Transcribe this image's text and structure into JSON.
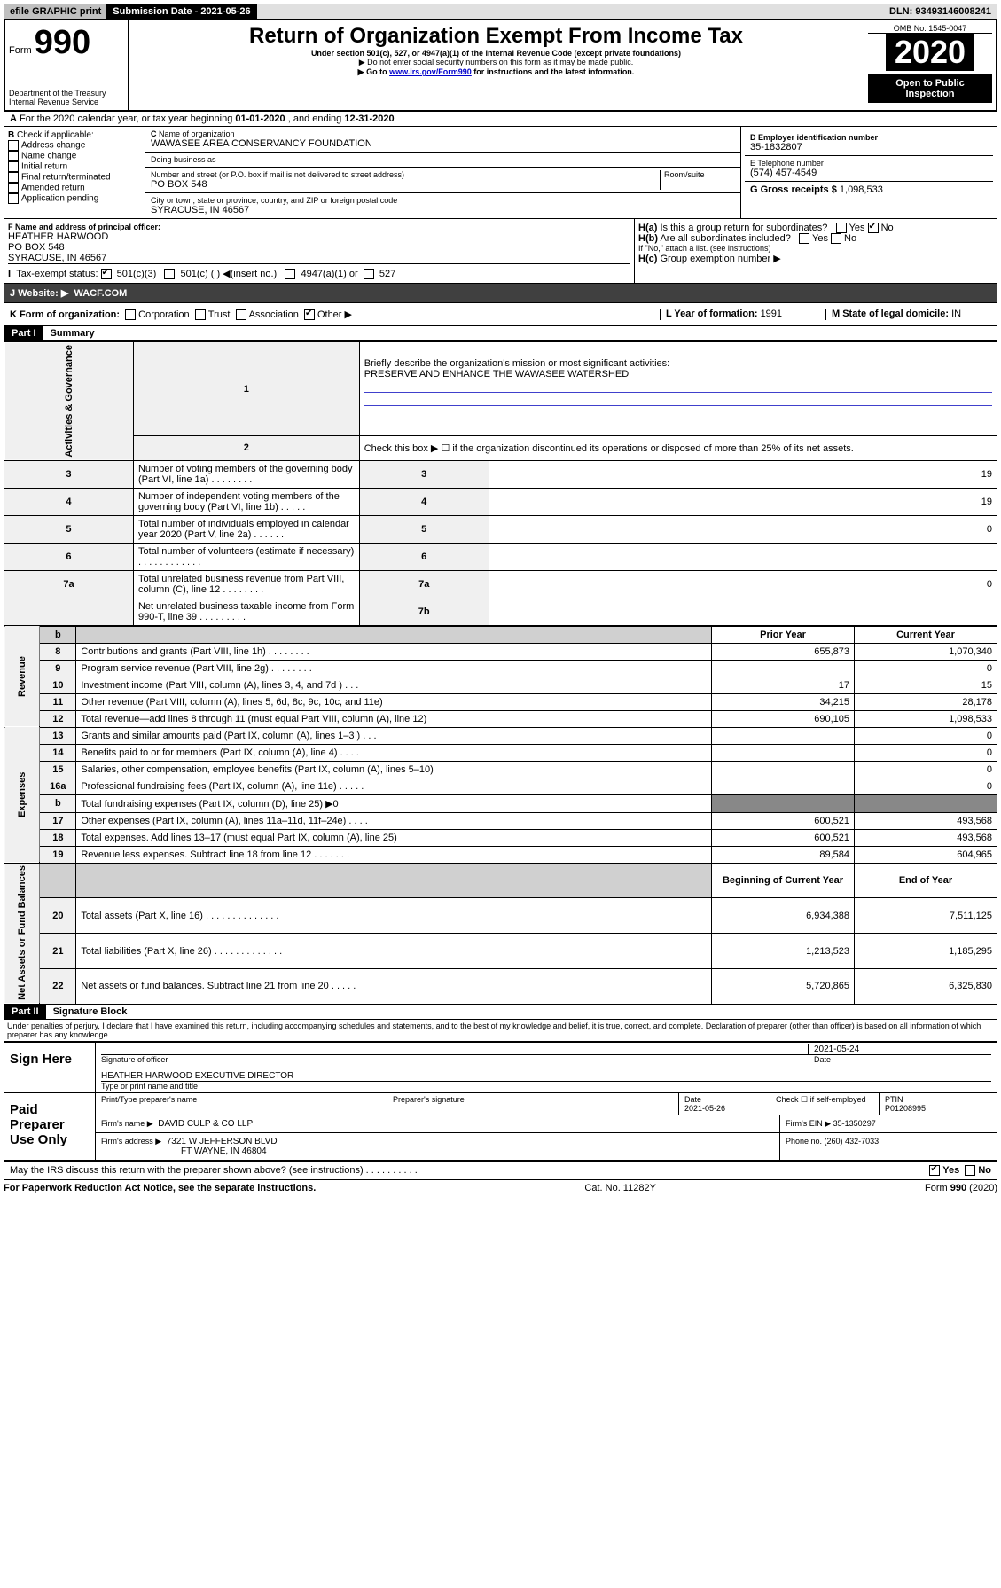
{
  "topbar": {
    "efile": "efile GRAPHIC print",
    "subdate_label": "Submission Date - 2021-05-26",
    "dln": "DLN: 93493146008241"
  },
  "header": {
    "form_prefix": "Form",
    "form_num": "990",
    "dept": "Department of the Treasury\nInternal Revenue Service",
    "title": "Return of Organization Exempt From Income Tax",
    "sub1": "Under section 501(c), 527, or 4947(a)(1) of the Internal Revenue Code (except private foundations)",
    "sub2": "▶ Do not enter social security numbers on this form as it may be made public.",
    "sub3_pre": "▶ Go to ",
    "sub3_link": "www.irs.gov/Form990",
    "sub3_post": " for instructions and the latest information.",
    "omb": "OMB No. 1545-0047",
    "year": "2020",
    "open": "Open to Public Inspection"
  },
  "periodA": {
    "text_pre": "For the 2020 calendar year, or tax year beginning ",
    "begin": "01-01-2020",
    "mid": " , and ending ",
    "end": "12-31-2020"
  },
  "checkB": {
    "label": "Check if applicable:",
    "items": [
      "Address change",
      "Name change",
      "Initial return",
      "Final return/terminated",
      "Amended return",
      "Application pending"
    ]
  },
  "orgC": {
    "name_label": "Name of organization",
    "name": "WAWASEE AREA CONSERVANCY FOUNDATION",
    "dba_label": "Doing business as",
    "addr_label": "Number and street (or P.O. box if mail is not delivered to street address)",
    "room_label": "Room/suite",
    "addr": "PO BOX 548",
    "city_label": "City or town, state or province, country, and ZIP or foreign postal code",
    "city": "SYRACUSE, IN  46567"
  },
  "colD": {
    "ein_label": "D Employer identification number",
    "ein": "35-1832807",
    "phone_label": "E Telephone number",
    "phone": "(574) 457-4549",
    "gross_label": "G Gross receipts $ ",
    "gross": "1,098,533"
  },
  "sectionF": {
    "label": "F Name and address of principal officer:",
    "name": "HEATHER HARWOOD",
    "addr1": "PO BOX 548",
    "addr2": "SYRACUSE, IN  46567"
  },
  "sectionH": {
    "a": "Is this a group return for subordinates?",
    "b": "Are all subordinates included?",
    "b_note": "If \"No,\" attach a list. (see instructions)",
    "c": "Group exemption number ▶"
  },
  "taxexempt": {
    "label": "Tax-exempt status:",
    "opt1": "501(c)(3)",
    "opt2": "501(c) (  ) ◀(insert no.)",
    "opt3": "4947(a)(1) or",
    "opt4": "527"
  },
  "website": {
    "label": "J   Website: ▶",
    "value": "WACF.COM"
  },
  "rowK": {
    "label": "K Form of organization:",
    "opts": [
      "Corporation",
      "Trust",
      "Association",
      "Other ▶"
    ],
    "L_label": "L Year of formation: ",
    "L_val": "1991",
    "M_label": "M State of legal domicile: ",
    "M_val": "IN"
  },
  "partI": {
    "header": "Part I",
    "title": "Summary",
    "q1_label": "Briefly describe the organization's mission or most significant activities:",
    "q1_text": "PRESERVE AND ENHANCE THE WAWASEE WATERSHED",
    "q2": "Check this box ▶ ☐  if the organization discontinued its operations or disposed of more than 25% of its net assets.",
    "lines_gov": [
      {
        "n": "3",
        "t": "Number of voting members of the governing body (Part VI, line 1a)  .    .    .    .    .    .    .    .",
        "box": "3",
        "v": "19"
      },
      {
        "n": "4",
        "t": "Number of independent voting members of the governing body (Part VI, line 1b)  .    .    .    .    .",
        "box": "4",
        "v": "19"
      },
      {
        "n": "5",
        "t": "Total number of individuals employed in calendar year 2020 (Part V, line 2a)  .    .    .    .    .    .",
        "box": "5",
        "v": "0"
      },
      {
        "n": "6",
        "t": "Total number of volunteers (estimate if necessary)  .    .    .    .    .    .    .    .    .    .    .    .",
        "box": "6",
        "v": ""
      },
      {
        "n": "7a",
        "t": "Total unrelated business revenue from Part VIII, column (C), line 12  .    .    .    .    .    .    .    .",
        "box": "7a",
        "v": "0"
      },
      {
        "n": "",
        "t": "Net unrelated business taxable income from Form 990-T, line 39  .    .    .    .    .    .    .    .    .",
        "box": "7b",
        "v": ""
      }
    ],
    "rev_header": {
      "b": "b",
      "py": "Prior Year",
      "cy": "Current Year"
    },
    "lines_rev": [
      {
        "n": "8",
        "t": "Contributions and grants (Part VIII, line 1h)  .    .    .    .    .    .    .    .",
        "py": "655,873",
        "cy": "1,070,340"
      },
      {
        "n": "9",
        "t": "Program service revenue (Part VIII, line 2g)  .    .    .    .    .    .    .    .",
        "py": "",
        "cy": "0"
      },
      {
        "n": "10",
        "t": "Investment income (Part VIII, column (A), lines 3, 4, and 7d )  .    .    .",
        "py": "17",
        "cy": "15"
      },
      {
        "n": "11",
        "t": "Other revenue (Part VIII, column (A), lines 5, 6d, 8c, 9c, 10c, and 11e)",
        "py": "34,215",
        "cy": "28,178"
      },
      {
        "n": "12",
        "t": "Total revenue—add lines 8 through 11 (must equal Part VIII, column (A), line 12)",
        "py": "690,105",
        "cy": "1,098,533"
      }
    ],
    "lines_exp": [
      {
        "n": "13",
        "t": "Grants and similar amounts paid (Part IX, column (A), lines 1–3 )  .    .    .",
        "py": "",
        "cy": "0"
      },
      {
        "n": "14",
        "t": "Benefits paid to or for members (Part IX, column (A), line 4)  .    .    .    .",
        "py": "",
        "cy": "0"
      },
      {
        "n": "15",
        "t": "Salaries, other compensation, employee benefits (Part IX, column (A), lines 5–10)",
        "py": "",
        "cy": "0"
      },
      {
        "n": "16a",
        "t": "Professional fundraising fees (Part IX, column (A), line 11e)  .    .    .    .    .",
        "py": "",
        "cy": "0"
      },
      {
        "n": "b",
        "t": "Total fundraising expenses (Part IX, column (D), line 25) ▶0",
        "py": "—",
        "cy": "—"
      },
      {
        "n": "17",
        "t": "Other expenses (Part IX, column (A), lines 11a–11d, 11f–24e)  .    .    .    .",
        "py": "600,521",
        "cy": "493,568"
      },
      {
        "n": "18",
        "t": "Total expenses. Add lines 13–17 (must equal Part IX, column (A), line 25)",
        "py": "600,521",
        "cy": "493,568"
      },
      {
        "n": "19",
        "t": "Revenue less expenses. Subtract line 18 from line 12  .    .    .    .    .    .    .",
        "py": "89,584",
        "cy": "604,965"
      }
    ],
    "net_header": {
      "py": "Beginning of Current Year",
      "cy": "End of Year"
    },
    "lines_net": [
      {
        "n": "20",
        "t": "Total assets (Part X, line 16)  .    .    .    .    .    .    .    .    .    .    .    .    .    .",
        "py": "6,934,388",
        "cy": "7,511,125"
      },
      {
        "n": "21",
        "t": "Total liabilities (Part X, line 26)  .    .    .    .    .    .    .    .    .    .    .    .    .",
        "py": "1,213,523",
        "cy": "1,185,295"
      },
      {
        "n": "22",
        "t": "Net assets or fund balances. Subtract line 21 from line 20  .    .    .    .    .",
        "py": "5,720,865",
        "cy": "6,325,830"
      }
    ],
    "side_gov": "Activities & Governance",
    "side_rev": "Revenue",
    "side_exp": "Expenses",
    "side_net": "Net Assets or Fund Balances"
  },
  "partII": {
    "header": "Part II",
    "title": "Signature Block",
    "perjury": "Under penalties of perjury, I declare that I have examined this return, including accompanying schedules and statements, and to the best of my knowledge and belief, it is true, correct, and complete. Declaration of preparer (other than officer) is based on all information of which preparer has any knowledge.",
    "sign_here": "Sign Here",
    "sig_officer": "Signature of officer",
    "sig_date": "2021-05-24",
    "date_label": "Date",
    "officer_name": "HEATHER HARWOOD  EXECUTIVE DIRECTOR",
    "type_name": "Type or print name and title",
    "paid": "Paid Preparer Use Only",
    "prep_name_label": "Print/Type preparer's name",
    "prep_sig_label": "Preparer's signature",
    "prep_date_label": "Date",
    "prep_date": "2021-05-26",
    "self_emp": "Check ☐ if self-employed",
    "ptin_label": "PTIN",
    "ptin": "P01208995",
    "firm_name_label": "Firm's name    ▶",
    "firm_name": "DAVID CULP & CO LLP",
    "firm_ein_label": "Firm's EIN ▶",
    "firm_ein": "35-1350297",
    "firm_addr_label": "Firm's address ▶",
    "firm_addr1": "7321 W JEFFERSON BLVD",
    "firm_addr2": "FT WAYNE, IN  46804",
    "firm_phone_label": "Phone no. ",
    "firm_phone": "(260) 432-7033",
    "discuss": "May the IRS discuss this return with the preparer shown above? (see instructions)  .    .    .    .    .    .    .    .    .    .",
    "yes": "Yes",
    "no": "No"
  },
  "footer": {
    "pra": "For Paperwork Reduction Act Notice, see the separate instructions.",
    "cat": "Cat. No. 11282Y",
    "form": "Form 990 (2020)"
  }
}
